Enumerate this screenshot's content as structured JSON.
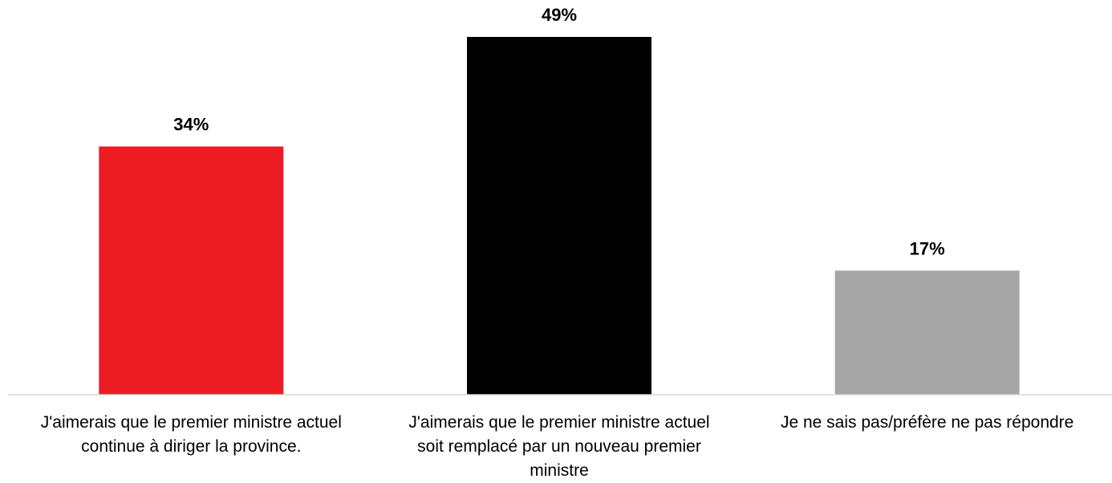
{
  "chart_data": {
    "type": "bar",
    "categories": [
      [
        "J'aimerais que le premier ministre actuel",
        "continue à diriger la province."
      ],
      [
        "J'aimerais que le premier ministre actuel",
        "soit remplacé par un nouveau premier",
        "ministre"
      ],
      [
        "Je ne sais pas/préfère ne pas répondre"
      ]
    ],
    "values": [
      34,
      49,
      17
    ],
    "value_labels": [
      "34%",
      "49%",
      "17%"
    ],
    "colors": [
      "#ED1C24",
      "#000000",
      "#A6A6A6"
    ],
    "ylim": [
      0,
      49
    ],
    "grid": false,
    "legend": "none"
  }
}
